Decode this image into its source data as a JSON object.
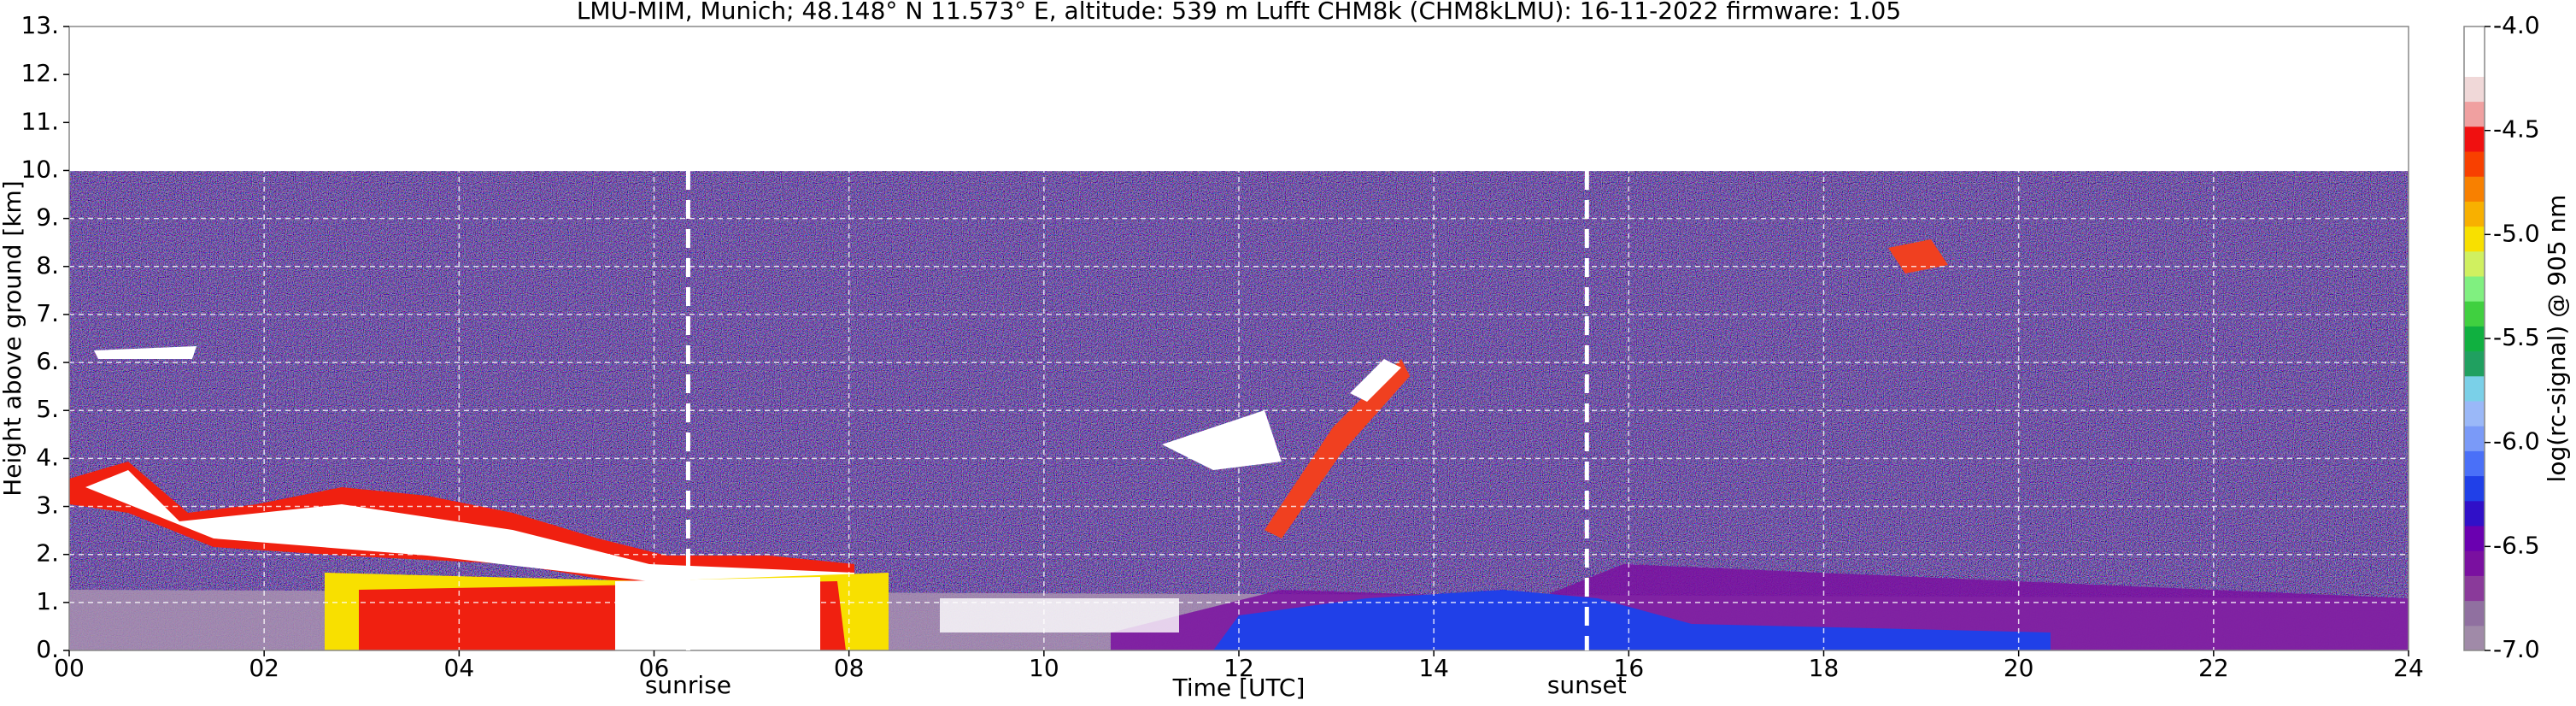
{
  "chart_data": {
    "type": "heatmap",
    "title": "LMU-MIM, Munich; 48.148° N 11.573° E, altitude: 539 m    Lufft CHM8k (CHM8kLMU): 16-11-2022    firmware: 1.05",
    "x_label": "Time [UTC]",
    "y_label": "Height above ground [km]",
    "xlim": [
      0,
      24
    ],
    "xticks": [
      {
        "value": 0,
        "label": "00"
      },
      {
        "value": 2,
        "label": "02"
      },
      {
        "value": 4,
        "label": "04"
      },
      {
        "value": 6,
        "label": "06"
      },
      {
        "value": 8,
        "label": "08"
      },
      10,
      12,
      14,
      16,
      18,
      20,
      22,
      24
    ],
    "ylim": [
      0,
      13
    ],
    "yticks": [
      {
        "value": 0,
        "label": "0."
      },
      {
        "value": 1,
        "label": "1."
      },
      {
        "value": 2,
        "label": "2."
      },
      {
        "value": 3,
        "label": "3."
      },
      {
        "value": 4,
        "label": "4."
      },
      {
        "value": 5,
        "label": "5."
      },
      {
        "value": 6,
        "label": "6."
      },
      {
        "value": 7,
        "label": "7."
      },
      {
        "value": 8,
        "label": "8."
      },
      {
        "value": 9,
        "label": "9."
      },
      {
        "value": 10,
        "label": "10."
      },
      {
        "value": 11,
        "label": "11."
      },
      {
        "value": 12,
        "label": "12."
      },
      {
        "value": 13,
        "label": "13."
      }
    ],
    "grid": true,
    "annotations": [
      {
        "text": "sunrise",
        "x": 6.35
      },
      {
        "text": "sunset",
        "x": 15.57
      }
    ],
    "colorbar": {
      "label": "log(rc-signal) @ 905 nm",
      "lim": [
        -7,
        -4
      ],
      "ticks": [
        {
          "value": -7,
          "label": "-7.0"
        },
        -6.5,
        {
          "value": -6,
          "label": "-6.0"
        },
        -5.5,
        {
          "value": -5,
          "label": "-5.0"
        },
        -4.5,
        {
          "value": -4,
          "label": "-4.0"
        }
      ],
      "colors": [
        "#a08aa8",
        "#9070a0",
        "#8a3a9a",
        "#7a10a0",
        "#6a00b0",
        "#3010c8",
        "#2040e8",
        "#4a70f8",
        "#7a9af8",
        "#9ab8f8",
        "#7ad0e8",
        "#20a060",
        "#10b040",
        "#40d040",
        "#80f080",
        "#d0f060",
        "#f8e000",
        "#f8b000",
        "#f88000",
        "#f84000",
        "#f01010",
        "#f0a0a0",
        "#f0d8d8",
        "#ffffff",
        "#ffffff"
      ]
    }
  }
}
